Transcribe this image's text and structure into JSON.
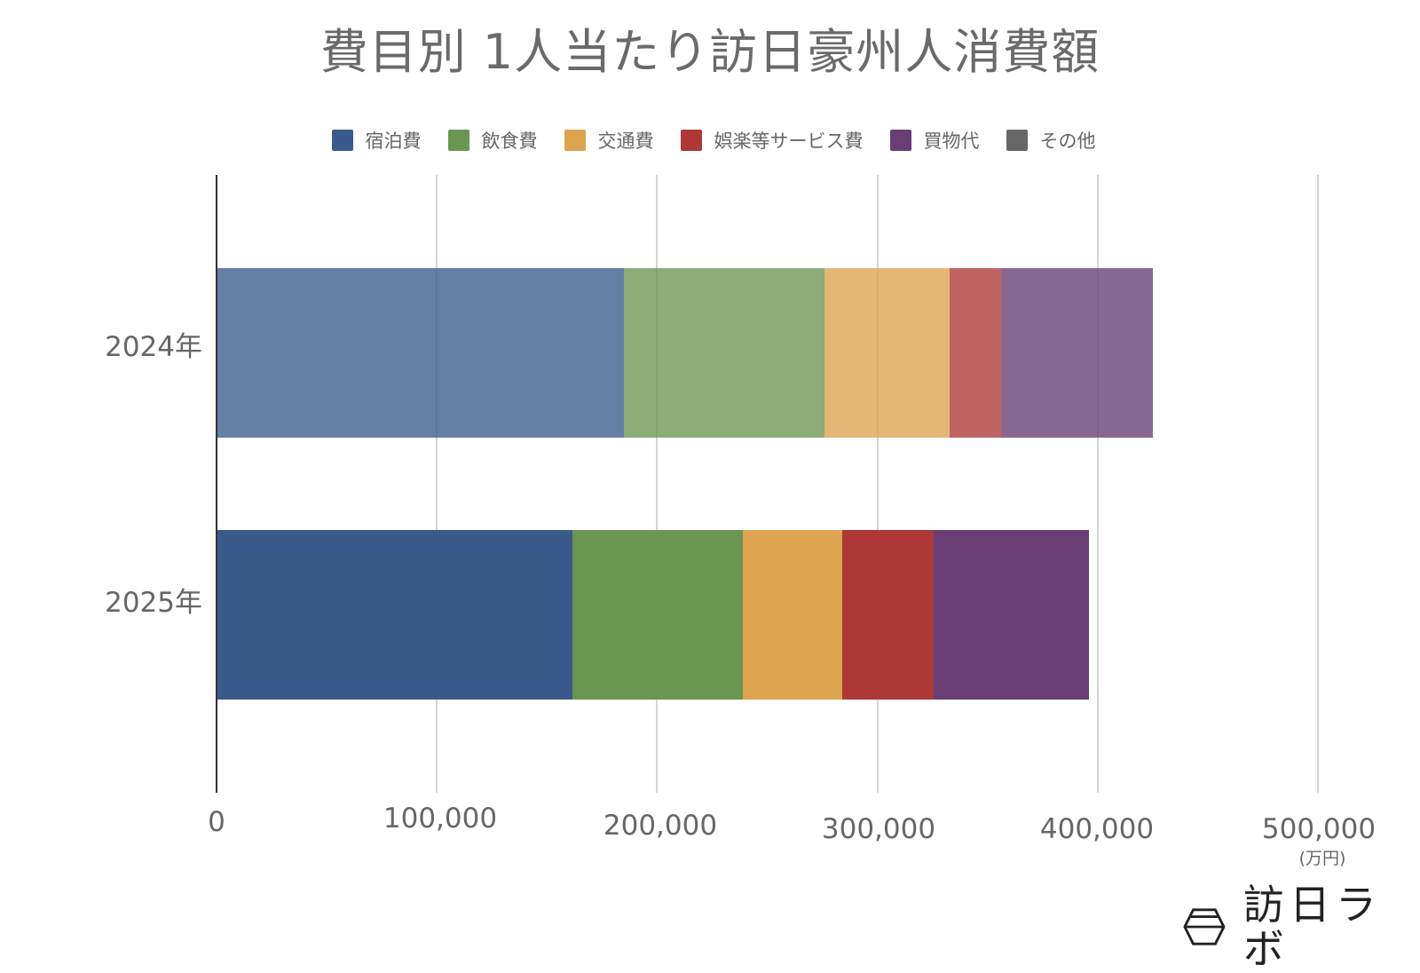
{
  "chart_data": {
    "type": "bar",
    "orientation": "horizontal",
    "stacked": true,
    "title": "費目別 1人当たり訪日豪州人消費額",
    "categories": [
      "2024年",
      "2025年"
    ],
    "series": [
      {
        "name": "宿泊費",
        "color": "#3a5a8c",
        "values": [
          184700,
          161200
        ]
      },
      {
        "name": "飲食費",
        "color": "#6a9652",
        "values": [
          90800,
          77300
        ]
      },
      {
        "name": "交通費",
        "color": "#dea34f",
        "values": [
          56900,
          45100
        ]
      },
      {
        "name": "娯楽等サービス費",
        "color": "#ad3836",
        "values": [
          23500,
          41500
        ]
      },
      {
        "name": "買物代",
        "color": "#683e75",
        "values": [
          68900,
          70500
        ]
      },
      {
        "name": "その他",
        "color": "#676767",
        "values": [
          0,
          0
        ]
      }
    ],
    "totals": [
      424800,
      395600
    ],
    "xlabel": "",
    "xunit": "(万円)",
    "ylabel": "",
    "xlim": [
      0,
      500000
    ],
    "xticks": [
      0,
      100000,
      200000,
      300000,
      400000,
      500000
    ],
    "xtick_labels": [
      "0",
      "100,000",
      "200,000",
      "300,000",
      "400,000",
      "500,000"
    ],
    "grid": {
      "x": true,
      "y": false
    },
    "legend_position": "top"
  },
  "title": "費目別 1人当たり訪日豪州人消費額",
  "legend": [
    {
      "label": "宿泊費",
      "color": "#3a5a8c"
    },
    {
      "label": "飲食費",
      "color": "#6a9652"
    },
    {
      "label": "交通費",
      "color": "#dea34f"
    },
    {
      "label": "娯楽等サービス費",
      "color": "#ad3836"
    },
    {
      "label": "買物代",
      "color": "#683e75"
    },
    {
      "label": "その他",
      "color": "#676767"
    }
  ],
  "y_axis": {
    "labels": [
      "2024年",
      "2025年"
    ]
  },
  "x_axis": {
    "ticks": [
      "0",
      "100,000",
      "200,000",
      "300,000",
      "400,000",
      "500,000"
    ],
    "unit": "(万円)"
  },
  "branding": {
    "logo_text": "訪日ラボ",
    "logo_icon": "hexagon-logo-icon"
  }
}
